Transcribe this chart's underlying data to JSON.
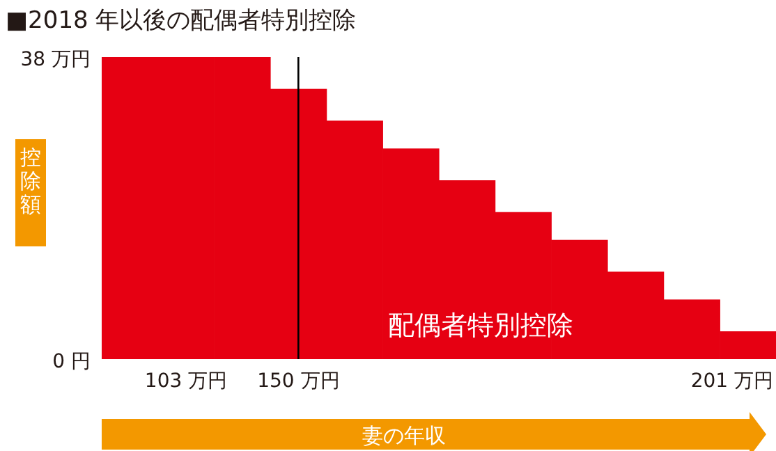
{
  "chart_data": {
    "type": "bar",
    "title": "■2018 年以後の配偶者特別控除",
    "ylabel": "控除額",
    "xlabel": "妻の年収",
    "categories": [
      null,
      "103 万円",
      null,
      "150 万円",
      null,
      null,
      null,
      null,
      null,
      null,
      null,
      "201 万円"
    ],
    "values": [
      38,
      38,
      38,
      34,
      30,
      26.5,
      22.5,
      18.5,
      15,
      11,
      7.5,
      3.5
    ],
    "color": "#e60012",
    "ylim": [
      0,
      38
    ],
    "yticks": [
      {
        "value": 0,
        "label": "0 円"
      },
      {
        "value": 38,
        "label": "38 万円"
      }
    ],
    "ref_lines": [
      {
        "axis": "x",
        "value": "150 万円",
        "color": "#000000"
      }
    ],
    "annotations": [
      "配偶者特別控除"
    ],
    "grid": false
  }
}
